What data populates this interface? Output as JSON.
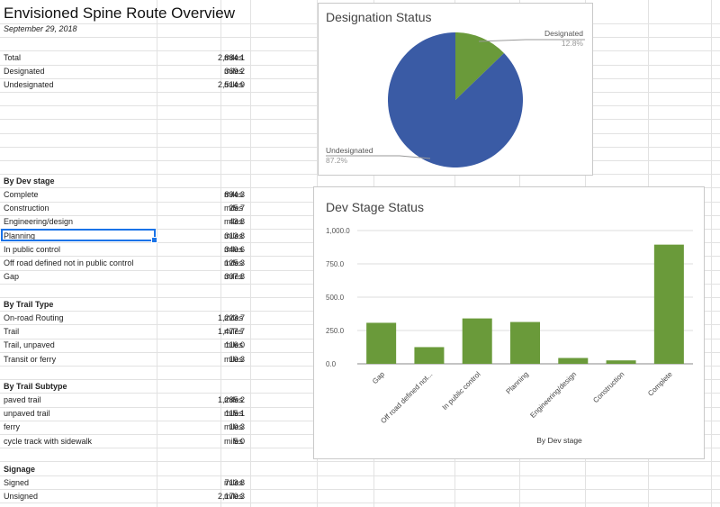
{
  "sheet": {
    "title": "Envisioned Spine Route Overview",
    "date": "September 29, 2018"
  },
  "unit": "miles",
  "summary": [
    {
      "label": "Total",
      "value": "2,884.1",
      "unit": "miles"
    },
    {
      "label": "Designated",
      "value": "369.2",
      "unit": "miles"
    },
    {
      "label": "Undesignated",
      "value": "2,514.9",
      "unit": "miles"
    }
  ],
  "dev_stage": {
    "heading": "By Dev stage",
    "rows": [
      {
        "label": "Complete",
        "value": "894.3",
        "unit": "miles"
      },
      {
        "label": "Construction",
        "value": "25.7",
        "unit": "miles"
      },
      {
        "label": "Engineering/design",
        "value": "43.8",
        "unit": "miles"
      },
      {
        "label": "Planning",
        "value": "313.8",
        "unit": "miles"
      },
      {
        "label": "In public control",
        "value": "340.6",
        "unit": "miles"
      },
      {
        "label": "Off road defined not in public control",
        "value": "125.3",
        "unit": "miles"
      },
      {
        "label": "Gap",
        "value": "307.8",
        "unit": "miles"
      }
    ]
  },
  "trail_type": {
    "heading": "By Trail Type",
    "rows": [
      {
        "label": "On-road Routing",
        "value": "1,223.7",
        "unit": "miles"
      },
      {
        "label": "Trail",
        "value": "1,477.7",
        "unit": "miles"
      },
      {
        "label": "Trail, unpaved",
        "value": "116.0",
        "unit": "miles"
      },
      {
        "label": "Transit or ferry",
        "value": "10.3",
        "unit": "miles"
      }
    ]
  },
  "trail_subtype": {
    "heading": "By Trail Subtype",
    "rows": [
      {
        "label": "paved trail",
        "value": "1,285.2",
        "unit": "miles"
      },
      {
        "label": "unpaved trail",
        "value": "115.1",
        "unit": "miles"
      },
      {
        "label": "ferry",
        "value": "10.3",
        "unit": "miles"
      },
      {
        "label": "cycle track with sidewalk",
        "value": "5.0",
        "unit": "miles"
      }
    ]
  },
  "signage": {
    "heading": "Signage",
    "rows": [
      {
        "label": "Signed",
        "value": "713.8",
        "unit": "miles"
      },
      {
        "label": "Unsigned",
        "value": "2,170.3",
        "unit": "miles"
      }
    ]
  },
  "colors": {
    "designated": "#6a9a3a",
    "undesignated": "#3a5ba5",
    "bar": "#6a9a3a",
    "selection": "#1a73e8"
  },
  "pie_chart": {
    "title": "Designation Status",
    "slices": [
      {
        "name": "Designated",
        "percent_label": "12.8%",
        "fraction": 0.128
      },
      {
        "name": "Undesignated",
        "percent_label": "87.2%",
        "fraction": 0.872
      }
    ]
  },
  "chart_data": [
    {
      "type": "pie",
      "title": "Designation Status",
      "categories": [
        "Designated",
        "Undesignated"
      ],
      "values": [
        12.8,
        87.2
      ]
    },
    {
      "type": "bar",
      "title": "Dev Stage Status",
      "xlabel": "By Dev stage",
      "ylabel": "",
      "categories": [
        "Gap",
        "Off road defined not...",
        "In public control",
        "Planning",
        "Engineering/design",
        "Construction",
        "Complete"
      ],
      "values": [
        307.8,
        125.3,
        340.6,
        313.8,
        43.8,
        25.7,
        894.3
      ],
      "yticks": [
        "0.0",
        "250.0",
        "500.0",
        "750.0",
        "1,000.0"
      ],
      "ylim": [
        0,
        1000
      ],
      "grid": true
    }
  ]
}
